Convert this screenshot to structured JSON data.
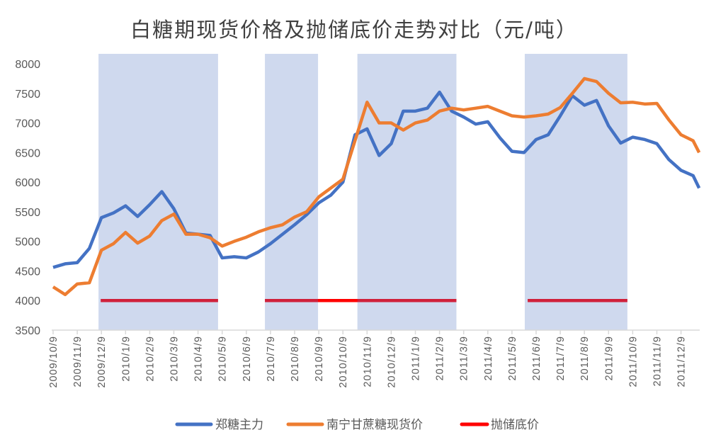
{
  "chart_data": {
    "type": "line",
    "title": "白糖期现货价格及抛储底价走势对比（元/吨）",
    "x_unit": "months since 2009/10/9",
    "x_tick_labels": [
      "2009/10/9",
      "2009/11/9",
      "2009/12/9",
      "2010/1/9",
      "2010/2/9",
      "2010/3/9",
      "2010/4/9",
      "2010/5/9",
      "2010/6/9",
      "2010/7/9",
      "2010/8/9",
      "2010/9/9",
      "2010/10/9",
      "2010/11/9",
      "2010/12/9",
      "2011/1/9",
      "2011/2/9",
      "2011/3/9",
      "2011/4/9",
      "2011/5/9",
      "2011/6/9",
      "2011/7/9",
      "2011/8/9",
      "2011/9/9",
      "2011/10/9",
      "2011/11/9",
      "2011/12/9"
    ],
    "xlim": [
      0,
      26.75
    ],
    "ylim": [
      3500,
      8000
    ],
    "y_ticks": [
      3500,
      4000,
      4500,
      5000,
      5500,
      6000,
      6500,
      7000,
      7500,
      8000
    ],
    "legend_position": "bottom",
    "shaded_periods": [
      [
        1.88,
        6.83
      ],
      [
        8.77,
        10.97
      ],
      [
        12.6,
        16.7
      ],
      [
        19.53,
        23.78
      ]
    ],
    "series": [
      {
        "name": "郑糖主力",
        "color": "#4472c4",
        "x_step": 0.5,
        "values": [
          4560,
          4620,
          4640,
          4880,
          5400,
          5480,
          5600,
          5420,
          5620,
          5840,
          5550,
          5140,
          5120,
          5100,
          4720,
          4740,
          4720,
          4820,
          4960,
          5120,
          5280,
          5450,
          5650,
          5780,
          6000,
          6800,
          6900,
          6450,
          6650,
          7200,
          7200,
          7250,
          7520,
          7200,
          7100,
          6980,
          7020,
          6750,
          6520,
          6500,
          6720,
          6800,
          7120,
          7460,
          7300,
          7380,
          6950,
          6660,
          6760,
          6720,
          6650,
          6380,
          6200,
          6110
        ],
        "last": [
          26.75,
          5900
        ]
      },
      {
        "name": "南宁甘蔗糖现货价",
        "color": "#ed7d31",
        "x_step": 0.5,
        "values": [
          4230,
          4100,
          4280,
          4300,
          4850,
          4960,
          5150,
          4970,
          5090,
          5350,
          5460,
          5120,
          5120,
          5060,
          4920,
          5000,
          5070,
          5160,
          5230,
          5280,
          5410,
          5500,
          5750,
          5900,
          6050,
          6700,
          7350,
          7000,
          7000,
          6880,
          7000,
          7050,
          7200,
          7250,
          7220,
          7250,
          7280,
          7200,
          7120,
          7100,
          7120,
          7150,
          7260,
          7500,
          7750,
          7700,
          7500,
          7340,
          7350,
          7320,
          7330,
          7050,
          6800,
          6700
        ],
        "last": [
          26.75,
          6500
        ]
      },
      {
        "name": "抛储底价",
        "color": "#ff0000",
        "in_band_color": "#d0203a",
        "value": 4000,
        "segments": [
          [
            1.97,
            6.83
          ],
          [
            8.77,
            16.7
          ],
          [
            19.65,
            23.78
          ]
        ]
      }
    ]
  }
}
